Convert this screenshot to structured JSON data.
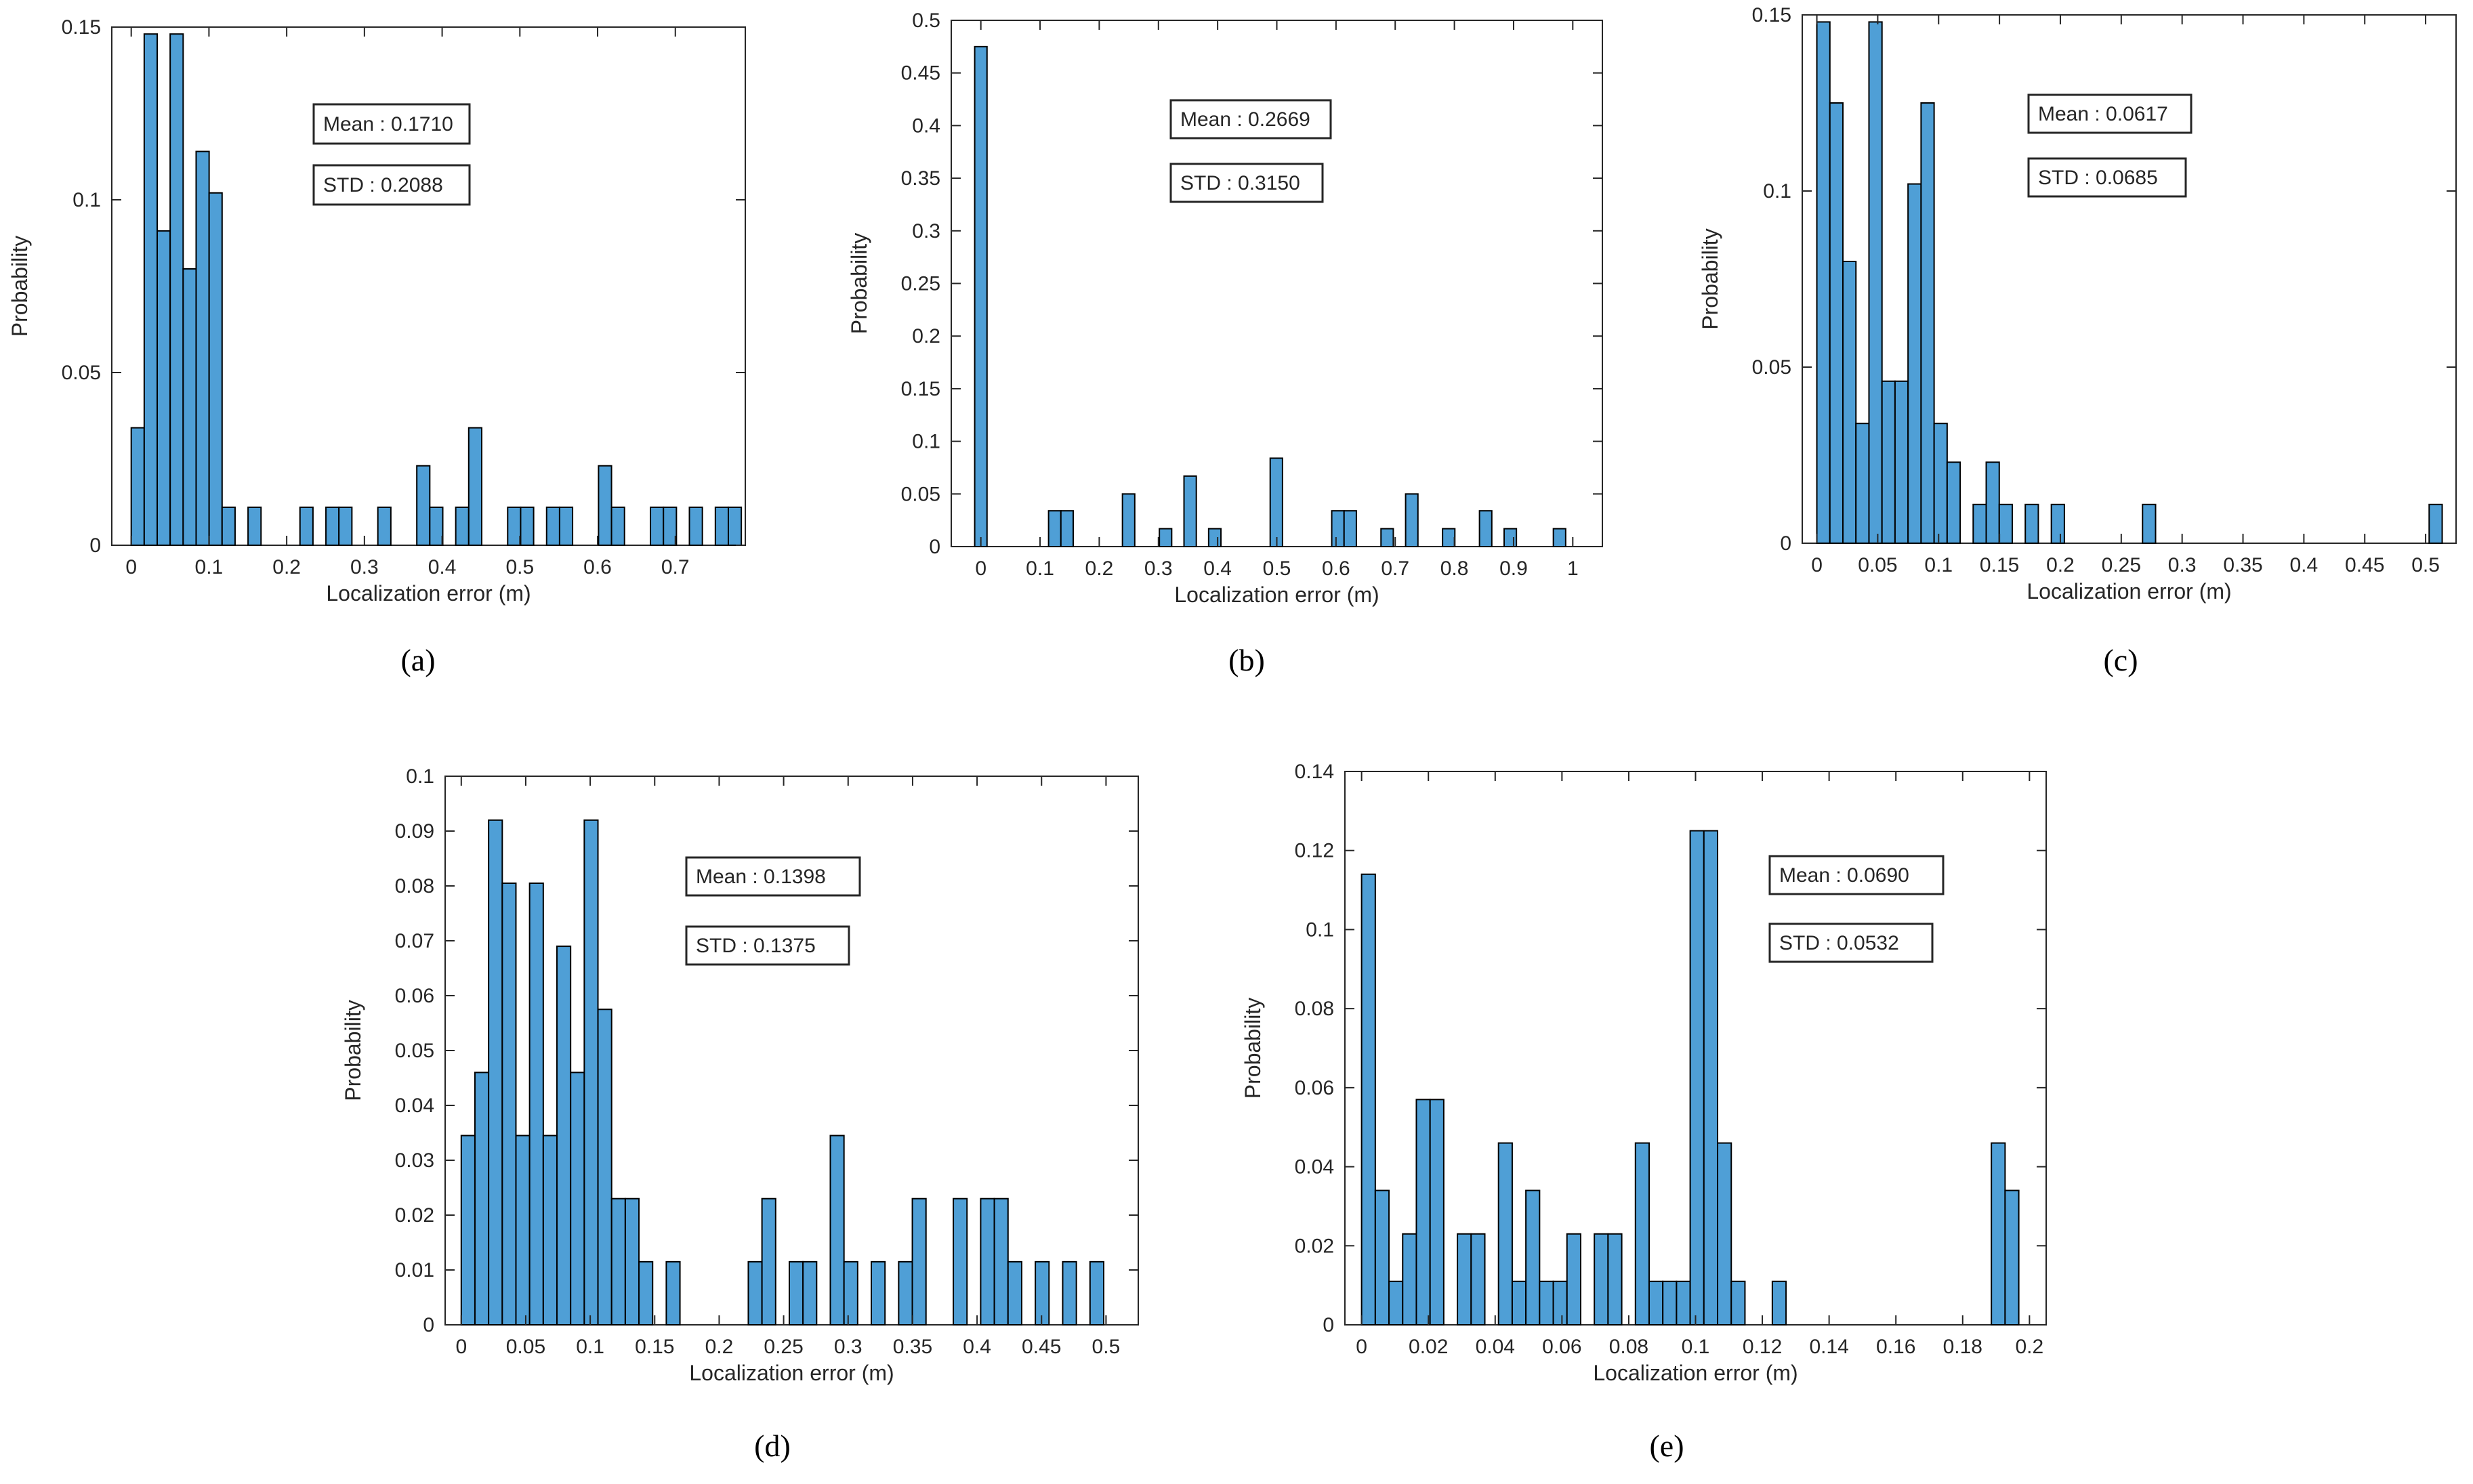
{
  "figure": {
    "colors": {
      "bar": "#4f9fd6",
      "bar_edge": "#000000",
      "axes": "#262626",
      "text": "#262626"
    }
  },
  "chart_data": [
    {
      "id": "a",
      "caption": "(a)",
      "type": "bar",
      "subtype": "histogram",
      "title": "",
      "xlabel": "Localization error (m)",
      "ylabel": "Probability",
      "xlim": [
        -0.025,
        0.79
      ],
      "ylim": [
        0,
        0.15
      ],
      "xticks": [
        0,
        0.1,
        0.2,
        0.3,
        0.4,
        0.5,
        0.6,
        0.7
      ],
      "xtick_labels": [
        "0",
        "0.1",
        "0.2",
        "0.3",
        "0.4",
        "0.5",
        "0.6",
        "0.7"
      ],
      "yticks": [
        0,
        0.05,
        0.1,
        0.15
      ],
      "ytick_labels": [
        "0",
        "0.05",
        "0.1",
        "0.15"
      ],
      "bin_width": 0.0167,
      "bin_start": 0,
      "values": [
        0.034,
        0.148,
        0.091,
        0.148,
        0.08,
        0.114,
        0.102,
        0.011,
        0,
        0.011,
        0,
        0,
        0,
        0.011,
        0,
        0.011,
        0.011,
        0,
        0,
        0.011,
        0,
        0,
        0.023,
        0.011,
        0,
        0.011,
        0.034,
        0,
        0,
        0.011,
        0.011,
        0,
        0.011,
        0.011,
        0,
        0,
        0.023,
        0.011,
        0,
        0,
        0.011,
        0.011,
        0,
        0.011,
        0,
        0.011,
        0.011
      ],
      "annotations": [
        {
          "label": "Mean : 0.1710"
        },
        {
          "label": "STD : 0.2088"
        }
      ]
    },
    {
      "id": "b",
      "caption": "(b)",
      "type": "bar",
      "subtype": "histogram",
      "title": "",
      "xlabel": "Localization error (m)",
      "ylabel": "Probability",
      "xlim": [
        -0.05,
        1.05
      ],
      "ylim": [
        0,
        0.5
      ],
      "xticks": [
        0,
        0.1,
        0.2,
        0.3,
        0.4,
        0.5,
        0.6,
        0.7,
        0.8,
        0.9,
        1
      ],
      "xtick_labels": [
        "0",
        "0.1",
        "0.2",
        "0.3",
        "0.4",
        "0.5",
        "0.6",
        "0.7",
        "0.8",
        "0.9",
        "1"
      ],
      "yticks": [
        0,
        0.05,
        0.1,
        0.15,
        0.2,
        0.25,
        0.3,
        0.35,
        0.4,
        0.45,
        0.5
      ],
      "ytick_labels": [
        "0",
        "0.05",
        "0.1",
        "0.15",
        "0.2",
        "0.25",
        "0.3",
        "0.35",
        "0.4",
        "0.45",
        "0.5"
      ],
      "bin_width": 0.0208,
      "bin_start": -0.0104,
      "values": [
        0.475,
        0,
        0,
        0,
        0,
        0,
        0.034,
        0.034,
        0,
        0,
        0,
        0,
        0.05,
        0,
        0,
        0.017,
        0,
        0.067,
        0,
        0.017,
        0,
        0,
        0,
        0,
        0.084,
        0,
        0,
        0,
        0,
        0.034,
        0.034,
        0,
        0,
        0.017,
        0,
        0.05,
        0,
        0,
        0.017,
        0,
        0,
        0.034,
        0,
        0.017,
        0,
        0,
        0,
        0.017
      ],
      "annotations": [
        {
          "label": "Mean : 0.2669"
        },
        {
          "label": "STD : 0.3150"
        }
      ]
    },
    {
      "id": "c",
      "caption": "(c)",
      "type": "bar",
      "subtype": "histogram",
      "title": "",
      "xlabel": "Localization error (m)",
      "ylabel": "Probability",
      "xlim": [
        -0.012,
        0.525
      ],
      "ylim": [
        0,
        0.15
      ],
      "xticks": [
        0,
        0.05,
        0.1,
        0.15,
        0.2,
        0.25,
        0.3,
        0.35,
        0.4,
        0.45,
        0.5
      ],
      "xtick_labels": [
        "0",
        "0.05",
        "0.1",
        "0.15",
        "0.2",
        "0.25",
        "0.3",
        "0.35",
        "0.4",
        "0.45",
        "0.5"
      ],
      "yticks": [
        0,
        0.05,
        0.1,
        0.15
      ],
      "ytick_labels": [
        "0",
        "0.05",
        "0.1",
        "0.15"
      ],
      "bin_width": 0.0107,
      "bin_start": 0,
      "values": [
        0.148,
        0.125,
        0.08,
        0.034,
        0.148,
        0.046,
        0.046,
        0.102,
        0.125,
        0.034,
        0.023,
        0,
        0.011,
        0.023,
        0.011,
        0,
        0.011,
        0,
        0.011,
        0,
        0,
        0,
        0,
        0,
        0,
        0.011,
        0,
        0,
        0,
        0,
        0,
        0,
        0,
        0,
        0,
        0,
        0,
        0,
        0,
        0,
        0,
        0,
        0,
        0,
        0,
        0,
        0,
        0.011
      ],
      "annotations": [
        {
          "label": "Mean : 0.0617"
        },
        {
          "label": "STD : 0.0685"
        }
      ]
    },
    {
      "id": "d",
      "caption": "(d)",
      "type": "bar",
      "subtype": "histogram",
      "title": "",
      "xlabel": "Localization error (m)",
      "ylabel": "Probability",
      "xlim": [
        -0.0125,
        0.525
      ],
      "ylim": [
        0,
        0.1
      ],
      "xticks": [
        0,
        0.05,
        0.1,
        0.15,
        0.2,
        0.25,
        0.3,
        0.35,
        0.4,
        0.45,
        0.5
      ],
      "xtick_labels": [
        "0",
        "0.05",
        "0.1",
        "0.15",
        "0.2",
        "0.25",
        "0.3",
        "0.35",
        "0.4",
        "0.45",
        "0.5"
      ],
      "yticks": [
        0,
        0.01,
        0.02,
        0.03,
        0.04,
        0.05,
        0.06,
        0.07,
        0.08,
        0.09,
        0.1
      ],
      "ytick_labels": [
        "0",
        "0.01",
        "0.02",
        "0.03",
        "0.04",
        "0.05",
        "0.06",
        "0.07",
        "0.08",
        "0.09",
        "0.1"
      ],
      "bin_width": 0.0106,
      "bin_start": 0,
      "values": [
        0.0345,
        0.046,
        0.092,
        0.0805,
        0.0345,
        0.0805,
        0.0345,
        0.069,
        0.046,
        0.092,
        0.0575,
        0.023,
        0.023,
        0.0115,
        0,
        0.0115,
        0,
        0,
        0,
        0,
        0,
        0.0115,
        0.023,
        0,
        0.0115,
        0.0115,
        0,
        0.0345,
        0.0115,
        0,
        0.0115,
        0,
        0.0115,
        0.023,
        0,
        0,
        0.023,
        0,
        0.023,
        0.023,
        0.0115,
        0,
        0.0115,
        0,
        0.0115,
        0,
        0.0115
      ],
      "annotations": [
        {
          "label": "Mean : 0.1398"
        },
        {
          "label": "STD : 0.1375"
        }
      ]
    },
    {
      "id": "e",
      "caption": "(e)",
      "type": "bar",
      "subtype": "histogram",
      "title": "",
      "xlabel": "Localization error (m)",
      "ylabel": "Probability",
      "xlim": [
        -0.005,
        0.205
      ],
      "ylim": [
        0,
        0.14
      ],
      "xticks": [
        0,
        0.02,
        0.04,
        0.06,
        0.08,
        0.1,
        0.12,
        0.14,
        0.16,
        0.18,
        0.2
      ],
      "xtick_labels": [
        "0",
        "0.02",
        "0.04",
        "0.06",
        "0.08",
        "0.1",
        "0.12",
        "0.14",
        "0.16",
        "0.18",
        "0.2"
      ],
      "yticks": [
        0,
        0.02,
        0.04,
        0.06,
        0.08,
        0.1,
        0.12,
        0.14
      ],
      "ytick_labels": [
        "0",
        "0.02",
        "0.04",
        "0.06",
        "0.08",
        "0.1",
        "0.12",
        "0.14"
      ],
      "bin_width": 0.0041,
      "bin_start": 0,
      "values": [
        0.114,
        0.034,
        0.011,
        0.023,
        0.057,
        0.057,
        0,
        0.023,
        0.023,
        0,
        0.046,
        0.011,
        0.034,
        0.011,
        0.011,
        0.023,
        0,
        0.023,
        0.023,
        0,
        0.046,
        0.011,
        0.011,
        0.011,
        0.125,
        0.125,
        0.046,
        0.011,
        0,
        0,
        0.011,
        0,
        0,
        0,
        0,
        0,
        0,
        0,
        0,
        0,
        0,
        0,
        0,
        0,
        0,
        0,
        0.046,
        0.034
      ],
      "annotations": [
        {
          "label": "Mean : 0.0690"
        },
        {
          "label": "STD : 0.0532"
        }
      ]
    }
  ]
}
